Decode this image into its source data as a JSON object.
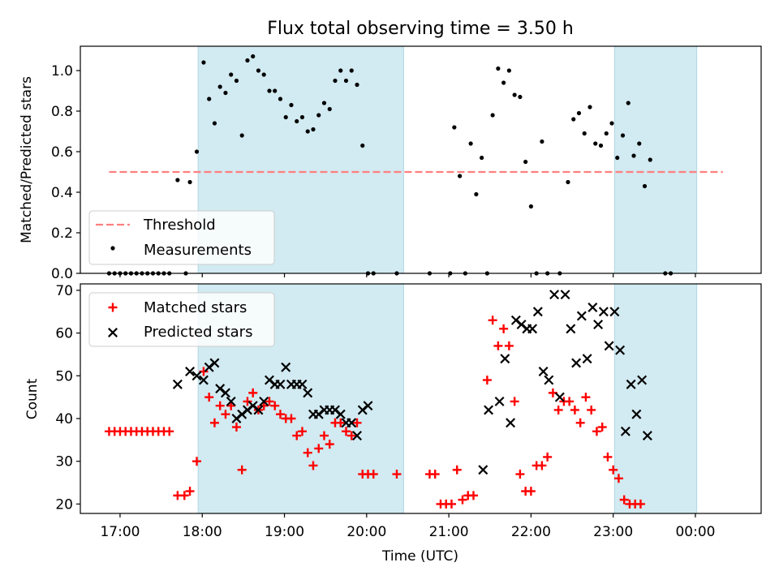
{
  "figure": {
    "title": "Flux total observing time = 3.50 h"
  },
  "colors": {
    "shade": "#add8e6",
    "threshold": "#ff7f7f",
    "measurement": "#000000",
    "matched": "#ff0000",
    "predicted": "#000000"
  },
  "chart_data": [
    {
      "type": "scatter",
      "ylabel": "Matched/Predicted stars",
      "ylim": [
        0,
        1.12
      ],
      "xlim": [
        "16:31",
        "00:48"
      ],
      "yticks": [
        "0.0",
        "0.2",
        "0.4",
        "0.6",
        "0.8",
        "1.0"
      ],
      "grid": false,
      "legend_placement": "lower-left",
      "shaded_spans": [
        [
          "17:57",
          "20:27"
        ],
        [
          "23:01",
          "00:01"
        ]
      ],
      "threshold": {
        "name": "Threshold",
        "y": 0.5,
        "x_range": [
          "16:52",
          "00:20"
        ]
      },
      "series": [
        {
          "name": "Measurements",
          "points": [
            [
              "16:52",
              0
            ],
            [
              "16:56",
              0
            ],
            [
              "17:00",
              0
            ],
            [
              "17:04",
              0
            ],
            [
              "17:08",
              0
            ],
            [
              "17:12",
              0
            ],
            [
              "17:16",
              0
            ],
            [
              "17:20",
              0
            ],
            [
              "17:24",
              0
            ],
            [
              "17:28",
              0
            ],
            [
              "17:32",
              0
            ],
            [
              "17:36",
              0
            ],
            [
              "17:48",
              0
            ],
            [
              "17:42",
              0.46
            ],
            [
              "17:51",
              0.45
            ],
            [
              "17:56",
              0.6
            ],
            [
              "18:01",
              1.04
            ],
            [
              "18:05",
              0.86
            ],
            [
              "18:09",
              0.74
            ],
            [
              "18:13",
              0.92
            ],
            [
              "18:17",
              0.89
            ],
            [
              "18:21",
              0.98
            ],
            [
              "18:25",
              0.95
            ],
            [
              "18:29",
              0.68
            ],
            [
              "18:33",
              1.05
            ],
            [
              "18:37",
              1.07
            ],
            [
              "18:41",
              1.0
            ],
            [
              "18:45",
              0.98
            ],
            [
              "18:49",
              0.9
            ],
            [
              "18:53",
              0.9
            ],
            [
              "18:57",
              0.86
            ],
            [
              "19:01",
              0.77
            ],
            [
              "19:05",
              0.83
            ],
            [
              "19:09",
              0.75
            ],
            [
              "19:13",
              0.77
            ],
            [
              "19:17",
              0.7
            ],
            [
              "19:21",
              0.71
            ],
            [
              "19:25",
              0.78
            ],
            [
              "19:29",
              0.84
            ],
            [
              "19:33",
              0.81
            ],
            [
              "19:37",
              0.95
            ],
            [
              "19:41",
              1.0
            ],
            [
              "19:45",
              0.95
            ],
            [
              "19:49",
              1.0
            ],
            [
              "19:53",
              0.93
            ],
            [
              "19:57",
              0.63
            ],
            [
              "20:01",
              0
            ],
            [
              "20:05",
              0
            ],
            [
              "20:22",
              0
            ],
            [
              "20:46",
              0
            ],
            [
              "21:01",
              0
            ],
            [
              "21:04",
              0.72
            ],
            [
              "21:08",
              0.48
            ],
            [
              "21:12",
              0
            ],
            [
              "21:16",
              0.64
            ],
            [
              "21:20",
              0.39
            ],
            [
              "21:24",
              0.57
            ],
            [
              "21:28",
              0
            ],
            [
              "21:32",
              0.78
            ],
            [
              "21:36",
              1.01
            ],
            [
              "21:40",
              0.94
            ],
            [
              "21:44",
              1.0
            ],
            [
              "21:48",
              0.88
            ],
            [
              "21:52",
              0.87
            ],
            [
              "21:56",
              0.55
            ],
            [
              "22:00",
              0.33
            ],
            [
              "22:04",
              0
            ],
            [
              "22:08",
              0.65
            ],
            [
              "22:12",
              0
            ],
            [
              "22:21",
              0
            ],
            [
              "22:27",
              0.45
            ],
            [
              "22:31",
              0.76
            ],
            [
              "22:35",
              0.79
            ],
            [
              "22:39",
              0.69
            ],
            [
              "22:43",
              0.82
            ],
            [
              "22:47",
              0.64
            ],
            [
              "22:51",
              0.63
            ],
            [
              "22:55",
              0.69
            ],
            [
              "22:59",
              0.74
            ],
            [
              "23:03",
              0.57
            ],
            [
              "23:07",
              0.68
            ],
            [
              "23:11",
              0.84
            ],
            [
              "23:15",
              0.58
            ],
            [
              "23:19",
              0.64
            ],
            [
              "23:23",
              0.43
            ],
            [
              "23:27",
              0.56
            ],
            [
              "23:38",
              0
            ],
            [
              "23:42",
              0
            ]
          ]
        }
      ]
    },
    {
      "type": "scatter",
      "ylabel": "Count",
      "xlabel": "Time (UTC)",
      "ylim": [
        17.8,
        71.5
      ],
      "xlim": [
        "16:31",
        "00:48"
      ],
      "yticks": [
        "20",
        "30",
        "40",
        "50",
        "60",
        "70"
      ],
      "xticks": [
        "17:00",
        "18:00",
        "19:00",
        "20:00",
        "21:00",
        "22:00",
        "23:00",
        "00:00"
      ],
      "grid": false,
      "legend_placement": "upper-left",
      "shaded_spans": [
        [
          "17:57",
          "20:27"
        ],
        [
          "23:01",
          "00:01"
        ]
      ],
      "series": [
        {
          "name": "Matched stars",
          "marker": "+",
          "points": [
            [
              "16:52",
              37
            ],
            [
              "16:56",
              37
            ],
            [
              "17:00",
              37
            ],
            [
              "17:04",
              37
            ],
            [
              "17:08",
              37
            ],
            [
              "17:12",
              37
            ],
            [
              "17:16",
              37
            ],
            [
              "17:20",
              37
            ],
            [
              "17:24",
              37
            ],
            [
              "17:28",
              37
            ],
            [
              "17:32",
              37
            ],
            [
              "17:36",
              37
            ],
            [
              "17:42",
              22
            ],
            [
              "17:47",
              22
            ],
            [
              "17:51",
              23
            ],
            [
              "17:56",
              30
            ],
            [
              "18:01",
              51
            ],
            [
              "18:05",
              45
            ],
            [
              "18:09",
              39
            ],
            [
              "18:13",
              43
            ],
            [
              "18:17",
              41
            ],
            [
              "18:21",
              43
            ],
            [
              "18:25",
              38
            ],
            [
              "18:29",
              28
            ],
            [
              "18:33",
              44
            ],
            [
              "18:37",
              46
            ],
            [
              "18:41",
              42
            ],
            [
              "18:45",
              43
            ],
            [
              "18:49",
              44
            ],
            [
              "18:53",
              43
            ],
            [
              "18:57",
              41
            ],
            [
              "19:01",
              40
            ],
            [
              "19:05",
              40
            ],
            [
              "19:09",
              36
            ],
            [
              "19:13",
              37
            ],
            [
              "19:17",
              32
            ],
            [
              "19:21",
              29
            ],
            [
              "19:25",
              33
            ],
            [
              "19:29",
              36
            ],
            [
              "19:33",
              34
            ],
            [
              "19:37",
              39
            ],
            [
              "19:41",
              39
            ],
            [
              "19:45",
              37
            ],
            [
              "19:49",
              36
            ],
            [
              "19:53",
              39
            ],
            [
              "19:57",
              27
            ],
            [
              "20:01",
              27
            ],
            [
              "20:05",
              27
            ],
            [
              "20:22",
              27
            ],
            [
              "20:46",
              27
            ],
            [
              "20:50",
              27
            ],
            [
              "20:54",
              20
            ],
            [
              "20:58",
              20
            ],
            [
              "21:02",
              20
            ],
            [
              "21:06",
              28
            ],
            [
              "21:10",
              21
            ],
            [
              "21:14",
              22
            ],
            [
              "21:18",
              22
            ],
            [
              "21:28",
              49
            ],
            [
              "21:32",
              63
            ],
            [
              "21:36",
              57
            ],
            [
              "21:40",
              61
            ],
            [
              "21:44",
              57
            ],
            [
              "21:48",
              44
            ],
            [
              "21:52",
              27
            ],
            [
              "21:56",
              23
            ],
            [
              "22:00",
              23
            ],
            [
              "22:04",
              29
            ],
            [
              "22:08",
              29
            ],
            [
              "22:12",
              31
            ],
            [
              "22:16",
              46
            ],
            [
              "22:20",
              42
            ],
            [
              "22:24",
              44
            ],
            [
              "22:28",
              44
            ],
            [
              "22:32",
              42
            ],
            [
              "22:36",
              39
            ],
            [
              "22:40",
              45
            ],
            [
              "22:44",
              42
            ],
            [
              "22:48",
              37
            ],
            [
              "22:52",
              38
            ],
            [
              "22:56",
              31
            ],
            [
              "23:00",
              28
            ],
            [
              "23:04",
              26
            ],
            [
              "23:08",
              21
            ],
            [
              "23:12",
              20
            ],
            [
              "23:16",
              20
            ],
            [
              "23:20",
              20
            ]
          ]
        },
        {
          "name": "Predicted stars",
          "marker": "x",
          "points": [
            [
              "17:42",
              48
            ],
            [
              "17:51",
              51
            ],
            [
              "17:56",
              50
            ],
            [
              "18:01",
              49
            ],
            [
              "18:05",
              52
            ],
            [
              "18:09",
              53
            ],
            [
              "18:13",
              47
            ],
            [
              "18:17",
              46
            ],
            [
              "18:21",
              44
            ],
            [
              "18:25",
              40
            ],
            [
              "18:29",
              41
            ],
            [
              "18:33",
              42
            ],
            [
              "18:37",
              43
            ],
            [
              "18:41",
              42
            ],
            [
              "18:45",
              44
            ],
            [
              "18:49",
              49
            ],
            [
              "18:53",
              48
            ],
            [
              "18:57",
              48
            ],
            [
              "19:01",
              52
            ],
            [
              "19:05",
              48
            ],
            [
              "19:09",
              48
            ],
            [
              "19:13",
              48
            ],
            [
              "19:17",
              46
            ],
            [
              "19:21",
              41
            ],
            [
              "19:25",
              41
            ],
            [
              "19:29",
              42
            ],
            [
              "19:33",
              42
            ],
            [
              "19:37",
              42
            ],
            [
              "19:41",
              41
            ],
            [
              "19:45",
              39
            ],
            [
              "19:49",
              39
            ],
            [
              "19:53",
              36
            ],
            [
              "19:57",
              42
            ],
            [
              "20:01",
              43
            ],
            [
              "21:25",
              28
            ],
            [
              "21:29",
              42
            ],
            [
              "21:37",
              44
            ],
            [
              "21:41",
              54
            ],
            [
              "21:45",
              39
            ],
            [
              "21:49",
              63
            ],
            [
              "21:53",
              62
            ],
            [
              "21:57",
              61
            ],
            [
              "22:01",
              61
            ],
            [
              "22:05",
              65
            ],
            [
              "22:09",
              51
            ],
            [
              "22:13",
              49
            ],
            [
              "22:17",
              69
            ],
            [
              "22:21",
              45
            ],
            [
              "22:25",
              69
            ],
            [
              "22:29",
              61
            ],
            [
              "22:33",
              53
            ],
            [
              "22:37",
              64
            ],
            [
              "22:41",
              54
            ],
            [
              "22:45",
              66
            ],
            [
              "22:49",
              62
            ],
            [
              "22:53",
              65
            ],
            [
              "22:57",
              57
            ],
            [
              "23:01",
              65
            ],
            [
              "23:05",
              56
            ],
            [
              "23:09",
              37
            ],
            [
              "23:13",
              48
            ],
            [
              "23:17",
              41
            ],
            [
              "23:21",
              49
            ],
            [
              "23:25",
              36
            ]
          ]
        }
      ]
    }
  ]
}
